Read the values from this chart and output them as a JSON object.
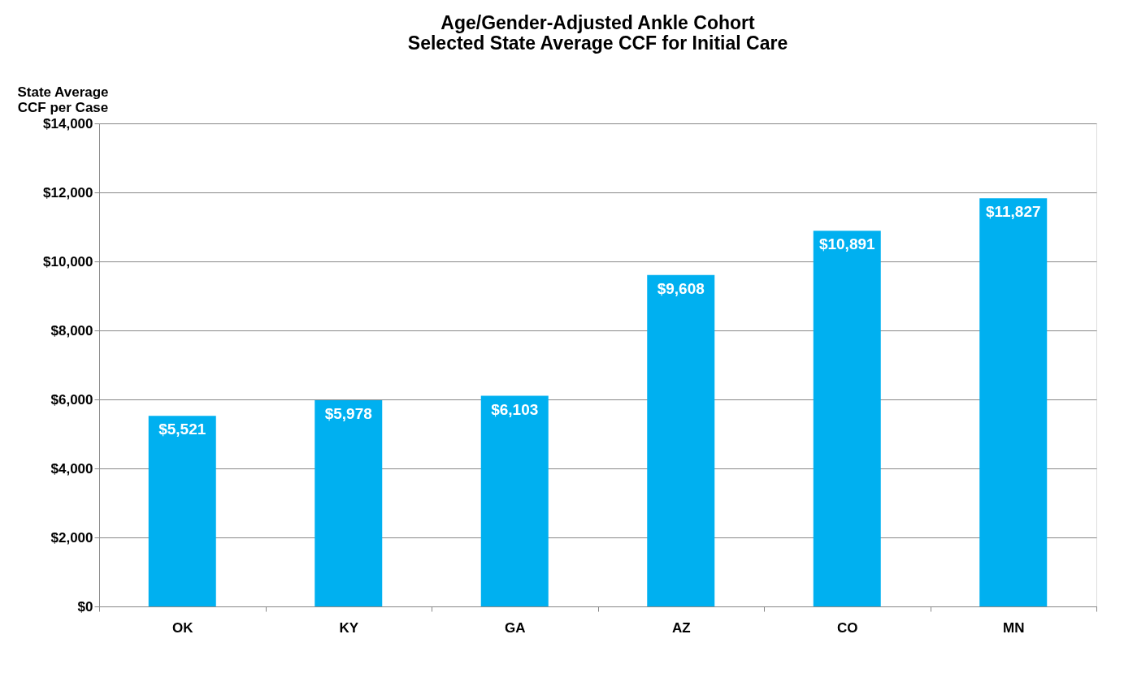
{
  "chart_data": {
    "type": "bar",
    "title": [
      "Age/Gender-Adjusted Ankle Cohort",
      "Selected State Average CCF for Initial Care"
    ],
    "ylabel": "State Average\nCCF per Case",
    "categories": [
      "OK",
      "KY",
      "GA",
      "AZ",
      "CO",
      "MN"
    ],
    "values": [
      5521,
      5978,
      6103,
      9608,
      10891,
      11827
    ],
    "value_labels": [
      "$5,521",
      "$5,978",
      "$6,103",
      "$9,608",
      "$10,891",
      "$11,827"
    ],
    "color": "#00b0f0",
    "ylim": [
      0,
      14000
    ],
    "yticks": [
      {
        "value": 0,
        "label": "$0"
      },
      {
        "value": 2000,
        "label": "$2,000"
      },
      {
        "value": 4000,
        "label": "$4,000"
      },
      {
        "value": 6000,
        "label": "$6,000"
      },
      {
        "value": 8000,
        "label": "$8,000"
      },
      {
        "value": 10000,
        "label": "$10,000"
      },
      {
        "value": 12000,
        "label": "$12,000"
      },
      {
        "value": 14000,
        "label": "$14,000"
      }
    ],
    "grid": "y"
  }
}
